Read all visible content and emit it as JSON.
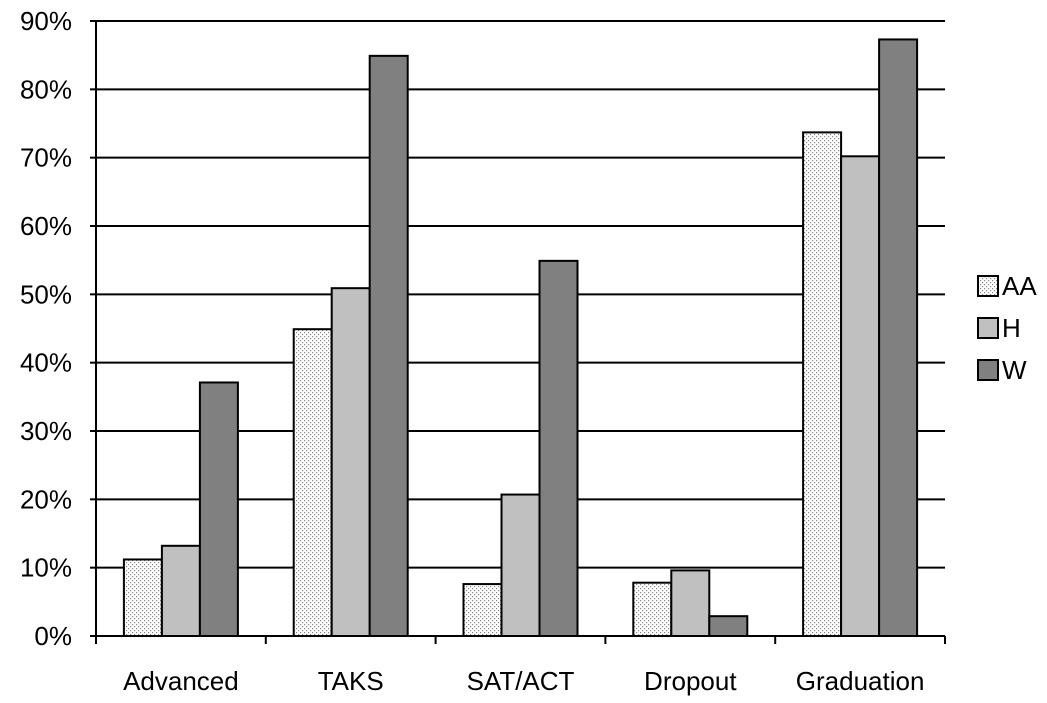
{
  "chart_data": {
    "type": "bar",
    "categories": [
      "Advanced",
      "TAKS",
      "SAT/ACT",
      "Dropout",
      "Graduation"
    ],
    "series": [
      {
        "name": "AA",
        "values": [
          11.2,
          44.9,
          7.6,
          7.8,
          73.7
        ],
        "fill": "dotted",
        "color": "#e6e6e6"
      },
      {
        "name": "H",
        "values": [
          13.2,
          50.9,
          20.7,
          9.6,
          70.2
        ],
        "fill": "solid",
        "color": "#c0c0c0"
      },
      {
        "name": "W",
        "values": [
          37.1,
          84.9,
          54.9,
          2.9,
          87.3
        ],
        "fill": "solid",
        "color": "#808080"
      }
    ],
    "ylim": [
      0,
      90
    ],
    "yticks": [
      0,
      10,
      20,
      30,
      40,
      50,
      60,
      70,
      80,
      90
    ],
    "ytick_labels": [
      "0%",
      "10%",
      "20%",
      "30%",
      "40%",
      "50%",
      "60%",
      "70%",
      "80%",
      "90%"
    ],
    "grid": true,
    "legend_position": "right",
    "title": "",
    "xlabel": "",
    "ylabel": ""
  }
}
